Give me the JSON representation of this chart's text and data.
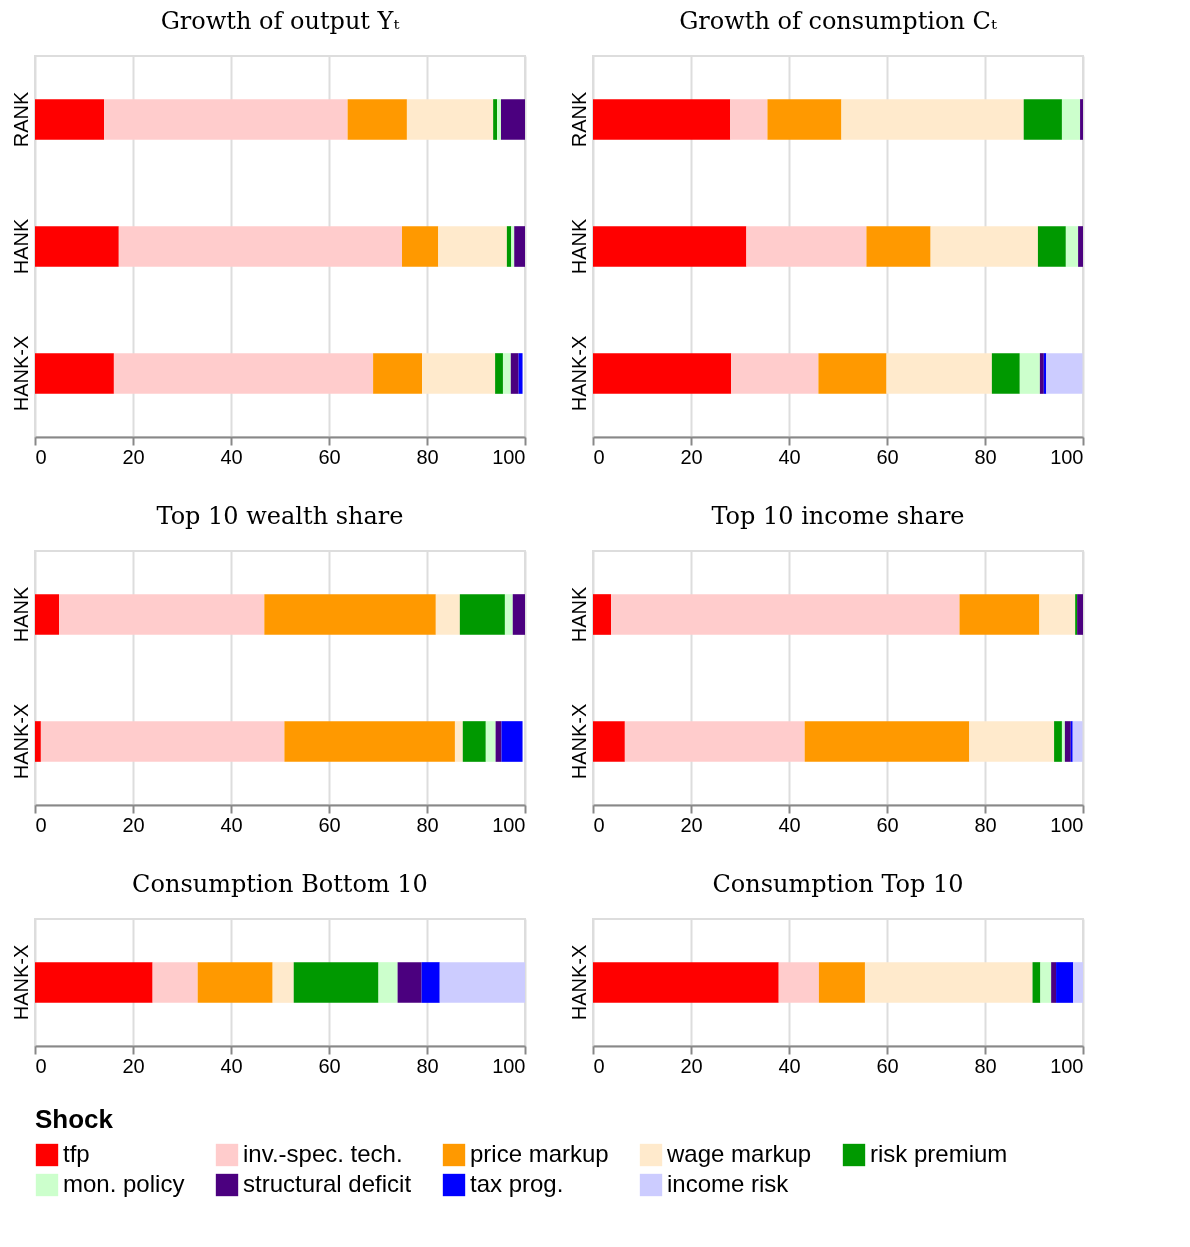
{
  "chart_data": [
    {
      "type": "bar",
      "orientation": "horizontal",
      "stacked": true,
      "title": "Growth of output Yₜ",
      "categories": [
        "RANK",
        "HANK",
        "HANK-X"
      ],
      "xlim": [
        0,
        100
      ],
      "xticks": [
        0,
        20,
        40,
        60,
        80,
        100
      ],
      "grid": "x",
      "legend": "bottom",
      "legend_title": "Shock",
      "series": [
        {
          "name": "tfp",
          "color": "#ff0000",
          "values": [
            14.1,
            17.1,
            16.1
          ]
        },
        {
          "name": "inv.-spec. tech.",
          "color": "#ffcccc",
          "values": [
            49.7,
            57.8,
            52.9
          ]
        },
        {
          "name": "price markup",
          "color": "#ff9900",
          "values": [
            12.1,
            7.4,
            10.0
          ]
        },
        {
          "name": "wage markup",
          "color": "#ffeacc",
          "values": [
            17.6,
            14.0,
            14.9
          ]
        },
        {
          "name": "risk premium",
          "color": "#009900",
          "values": [
            0.8,
            0.9,
            1.6
          ]
        },
        {
          "name": "mon. policy",
          "color": "#ccffcc",
          "values": [
            0.8,
            0.6,
            1.6
          ]
        },
        {
          "name": "structural deficit",
          "color": "#4b007f",
          "values": [
            4.9,
            2.2,
            1.6
          ]
        },
        {
          "name": "tax prog.",
          "color": "#0000ff",
          "values": [
            null,
            null,
            0.8
          ]
        }
      ]
    },
    {
      "type": "bar",
      "orientation": "horizontal",
      "stacked": true,
      "title": "Growth of consumption Cₜ",
      "categories": [
        "RANK",
        "HANK",
        "HANK-X"
      ],
      "xlim": [
        0,
        100
      ],
      "xticks": [
        0,
        20,
        40,
        60,
        80,
        100
      ],
      "grid": "x",
      "series": [
        {
          "name": "tfp",
          "color": "#ff0000",
          "values": [
            28.0,
            31.3,
            28.2
          ]
        },
        {
          "name": "inv.-spec. tech.",
          "color": "#ffcccc",
          "values": [
            7.6,
            24.5,
            17.8
          ]
        },
        {
          "name": "price markup",
          "color": "#ff9900",
          "values": [
            15.1,
            13.1,
            13.9
          ]
        },
        {
          "name": "wage markup",
          "color": "#ffeacc",
          "values": [
            37.2,
            21.9,
            21.5
          ]
        },
        {
          "name": "risk premium",
          "color": "#009900",
          "values": [
            7.8,
            5.7,
            5.7
          ]
        },
        {
          "name": "mon. policy",
          "color": "#ccffcc",
          "values": [
            3.7,
            2.5,
            4.1
          ]
        },
        {
          "name": "structural deficit",
          "color": "#4b007f",
          "values": [
            0.6,
            1.0,
            0.8
          ]
        },
        {
          "name": "tax prog.",
          "color": "#0000ff",
          "values": [
            null,
            null,
            0.5
          ]
        },
        {
          "name": "income risk",
          "color": "#ccccff",
          "values": [
            null,
            null,
            7.4
          ]
        }
      ]
    },
    {
      "type": "bar",
      "orientation": "horizontal",
      "stacked": true,
      "title": "Top 10 wealth share",
      "categories": [
        "HANK",
        "HANK-X"
      ],
      "xlim": [
        0,
        100
      ],
      "xticks": [
        0,
        20,
        40,
        60,
        80,
        100
      ],
      "grid": "x",
      "series": [
        {
          "name": "tfp",
          "color": "#ff0000",
          "values": [
            4.9,
            1.2
          ]
        },
        {
          "name": "inv.-spec. tech.",
          "color": "#ffcccc",
          "values": [
            41.9,
            49.7
          ]
        },
        {
          "name": "price markup",
          "color": "#ff9900",
          "values": [
            35.0,
            34.8
          ]
        },
        {
          "name": "wage markup",
          "color": "#ffeacc",
          "values": [
            4.9,
            1.6
          ]
        },
        {
          "name": "risk premium",
          "color": "#009900",
          "values": [
            9.2,
            4.7
          ]
        },
        {
          "name": "mon. policy",
          "color": "#ccffcc",
          "values": [
            1.6,
            2.0
          ]
        },
        {
          "name": "structural deficit",
          "color": "#4b007f",
          "values": [
            2.5,
            1.2
          ]
        },
        {
          "name": "tax prog.",
          "color": "#0000ff",
          "values": [
            null,
            4.3
          ]
        }
      ]
    },
    {
      "type": "bar",
      "orientation": "horizontal",
      "stacked": true,
      "title": "Top 10 income share",
      "categories": [
        "HANK",
        "HANK-X"
      ],
      "xlim": [
        0,
        100
      ],
      "xticks": [
        0,
        20,
        40,
        60,
        80,
        100
      ],
      "grid": "x",
      "series": [
        {
          "name": "tfp",
          "color": "#ff0000",
          "values": [
            3.7,
            6.5
          ]
        },
        {
          "name": "inv.-spec. tech.",
          "color": "#ffcccc",
          "values": [
            71.1,
            36.7
          ]
        },
        {
          "name": "price markup",
          "color": "#ff9900",
          "values": [
            16.3,
            33.6
          ]
        },
        {
          "name": "wage markup",
          "color": "#ffeacc",
          "values": [
            7.3,
            17.3
          ]
        },
        {
          "name": "risk premium",
          "color": "#009900",
          "values": [
            0.4,
            1.6
          ]
        },
        {
          "name": "mon. policy",
          "color": "#ccffcc",
          "values": [
            null,
            0.6
          ]
        },
        {
          "name": "structural deficit",
          "color": "#4b007f",
          "values": [
            1.2,
            1.2
          ]
        },
        {
          "name": "tax prog.",
          "color": "#0000ff",
          "values": [
            null,
            0.4
          ]
        },
        {
          "name": "income risk",
          "color": "#ccccff",
          "values": [
            null,
            2.0
          ]
        }
      ]
    },
    {
      "type": "bar",
      "orientation": "horizontal",
      "stacked": true,
      "title": "Consumption Bottom 10",
      "categories": [
        "HANK-X"
      ],
      "xlim": [
        0,
        100
      ],
      "xticks": [
        0,
        20,
        40,
        60,
        80,
        100
      ],
      "grid": "x",
      "series": [
        {
          "name": "tfp",
          "color": "#ff0000",
          "values": [
            24.0
          ]
        },
        {
          "name": "inv.-spec. tech.",
          "color": "#ffcccc",
          "values": [
            9.2
          ]
        },
        {
          "name": "price markup",
          "color": "#ff9900",
          "values": [
            15.3
          ]
        },
        {
          "name": "wage markup",
          "color": "#ffeacc",
          "values": [
            4.3
          ]
        },
        {
          "name": "risk premium",
          "color": "#009900",
          "values": [
            17.3
          ]
        },
        {
          "name": "mon. policy",
          "color": "#ccffcc",
          "values": [
            3.9
          ]
        },
        {
          "name": "structural deficit",
          "color": "#4b007f",
          "values": [
            4.9
          ]
        },
        {
          "name": "tax prog.",
          "color": "#0000ff",
          "values": [
            3.7
          ]
        },
        {
          "name": "income risk",
          "color": "#ccccff",
          "values": [
            17.4
          ]
        }
      ]
    },
    {
      "type": "bar",
      "orientation": "horizontal",
      "stacked": true,
      "title": "Consumption Top 10",
      "categories": [
        "HANK-X"
      ],
      "xlim": [
        0,
        100
      ],
      "xticks": [
        0,
        20,
        40,
        60,
        80,
        100
      ],
      "grid": "x",
      "series": [
        {
          "name": "tfp",
          "color": "#ff0000",
          "values": [
            37.9
          ]
        },
        {
          "name": "inv.-spec. tech.",
          "color": "#ffcccc",
          "values": [
            8.2
          ]
        },
        {
          "name": "price markup",
          "color": "#ff9900",
          "values": [
            9.4
          ]
        },
        {
          "name": "wage markup",
          "color": "#ffeacc",
          "values": [
            34.2
          ]
        },
        {
          "name": "risk premium",
          "color": "#009900",
          "values": [
            1.6
          ]
        },
        {
          "name": "mon. policy",
          "color": "#ccffcc",
          "values": [
            2.2
          ]
        },
        {
          "name": "structural deficit",
          "color": "#4b007f",
          "values": [
            1.0
          ]
        },
        {
          "name": "tax prog.",
          "color": "#0000ff",
          "values": [
            3.5
          ]
        },
        {
          "name": "income risk",
          "color": "#ccccff",
          "values": [
            2.0
          ]
        }
      ]
    }
  ]
}
